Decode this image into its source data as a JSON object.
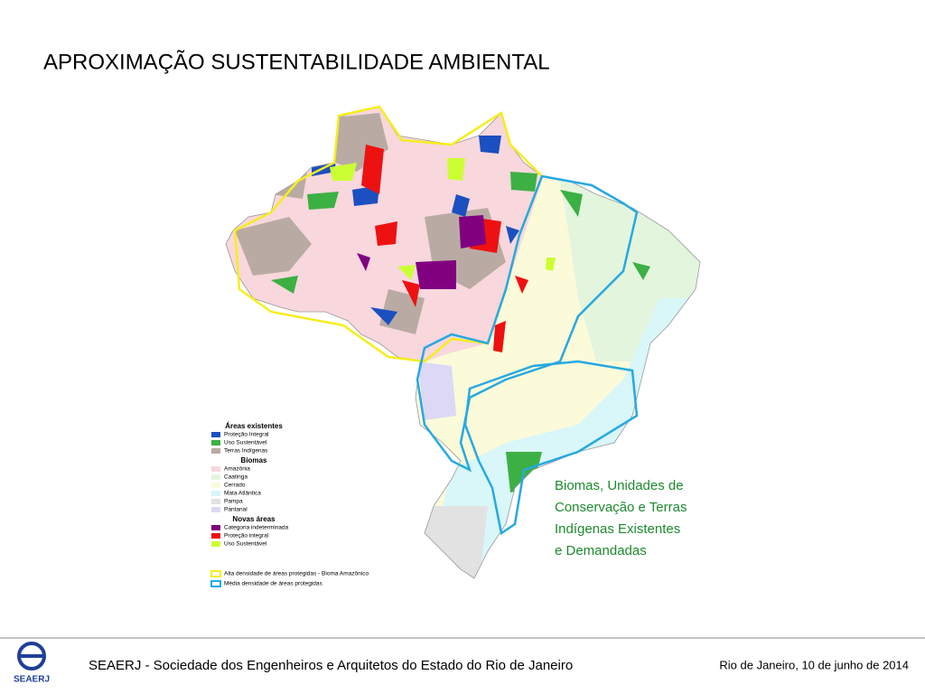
{
  "header": {
    "title": "APROXIMAÇÃO SUSTENTABILIDADE AMBIENTAL"
  },
  "legend": {
    "groups": [
      {
        "title": "Áreas existentes",
        "items": [
          {
            "label": "Proteção Integral",
            "color": "#1c4fc0"
          },
          {
            "label": "Uso Sustentável",
            "color": "#3cb043"
          },
          {
            "label": "Terras Indígenas",
            "color": "#b9aba3"
          }
        ]
      },
      {
        "title": "Biomas",
        "items": [
          {
            "label": "Amazônia",
            "color": "#f8d7dd"
          },
          {
            "label": "Caatinga",
            "color": "#e4f5de"
          },
          {
            "label": "Cerrado",
            "color": "#fbfad9"
          },
          {
            "label": "Mata Atlântica",
            "color": "#d9f6f8"
          },
          {
            "label": "Pampa",
            "color": "#e2e2e2"
          },
          {
            "label": "Pantanal",
            "color": "#dcd8f6"
          }
        ]
      },
      {
        "title": "Novas áreas",
        "items": [
          {
            "label": "Categoria indeterminada",
            "color": "#800080"
          },
          {
            "label": "Proteção integral",
            "color": "#ee1111"
          },
          {
            "label": "Uso Sustentável",
            "color": "#ccff33"
          }
        ]
      }
    ],
    "outlines": [
      {
        "label": "Alta densidade de áreas protegidas - Bioma Amazônico",
        "color": "#f5ee1c"
      },
      {
        "label": "Média densidade de áreas protegidas",
        "color": "#27a9e1"
      }
    ]
  },
  "caption": {
    "lines": [
      "Biomas, Unidades de",
      "Conservação e Terras",
      "Indígenas Existentes",
      "e Demandadas"
    ]
  },
  "footer": {
    "logo": "SEAERJ",
    "organization": "SEAERJ - Sociedade dos Engenheiros e Arquitetos do Estado do Rio de Janeiro",
    "date": "Rio de Janeiro, 10 de junho de 2014"
  }
}
